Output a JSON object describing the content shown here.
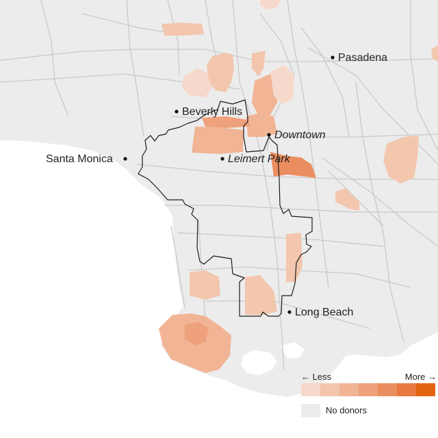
{
  "places": [
    {
      "name": "Pasadena",
      "italic": false
    },
    {
      "name": "Beverly Hills",
      "italic": false
    },
    {
      "name": "Downtown",
      "italic": true
    },
    {
      "name": "Santa Monica",
      "italic": false
    },
    {
      "name": "Leimert Park",
      "italic": true
    },
    {
      "name": "Long Beach",
      "italic": false
    }
  ],
  "legend": {
    "less_label": "← Less",
    "more_label": "More →",
    "no_donors_label": "No donors",
    "scale_colors": [
      "#f6d9cb",
      "#f3c6ae",
      "#f1b495",
      "#eea17b",
      "#eb8e5f",
      "#e97842",
      "#e36410"
    ],
    "no_donors_color": "#ececec"
  },
  "colors": {
    "land": "#ececec",
    "water": "#ffffff",
    "roads": "#c9c9c9",
    "district_outline": "#1a1a1a"
  }
}
